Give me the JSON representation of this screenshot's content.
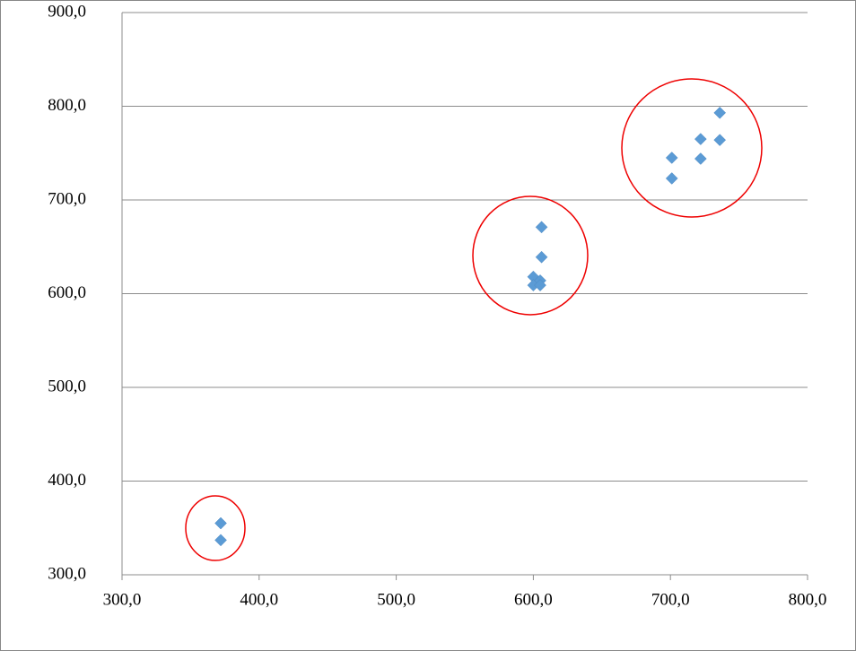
{
  "chart_data": {
    "type": "scatter",
    "x": [
      372,
      372,
      606,
      606,
      600,
      605,
      600,
      605,
      701,
      701,
      722,
      722,
      736,
      736
    ],
    "values": [
      355,
      337,
      671,
      639,
      618,
      614,
      609,
      609,
      745,
      723,
      765,
      744,
      793,
      764
    ],
    "color": "#5b9bd5",
    "xlim": [
      300,
      800
    ],
    "xticks": [
      {
        "value": 300,
        "label": "300,0"
      },
      {
        "value": 400,
        "label": "400,0"
      },
      {
        "value": 500,
        "label": "500,0"
      },
      {
        "value": 600,
        "label": "600,0"
      },
      {
        "value": 700,
        "label": "700,0"
      },
      {
        "value": 800,
        "label": "800,0"
      }
    ],
    "ylim": [
      300,
      900
    ],
    "yticks": [
      {
        "value": 300,
        "label": "300,0"
      },
      {
        "value": 400,
        "label": "400,0"
      },
      {
        "value": 500,
        "label": "500,0"
      },
      {
        "value": 600,
        "label": "600,0"
      },
      {
        "value": 700,
        "label": "700,0"
      },
      {
        "value": 800,
        "label": "800,0"
      },
      {
        "value": 900,
        "label": "900,0"
      }
    ],
    "grid": true
  }
}
